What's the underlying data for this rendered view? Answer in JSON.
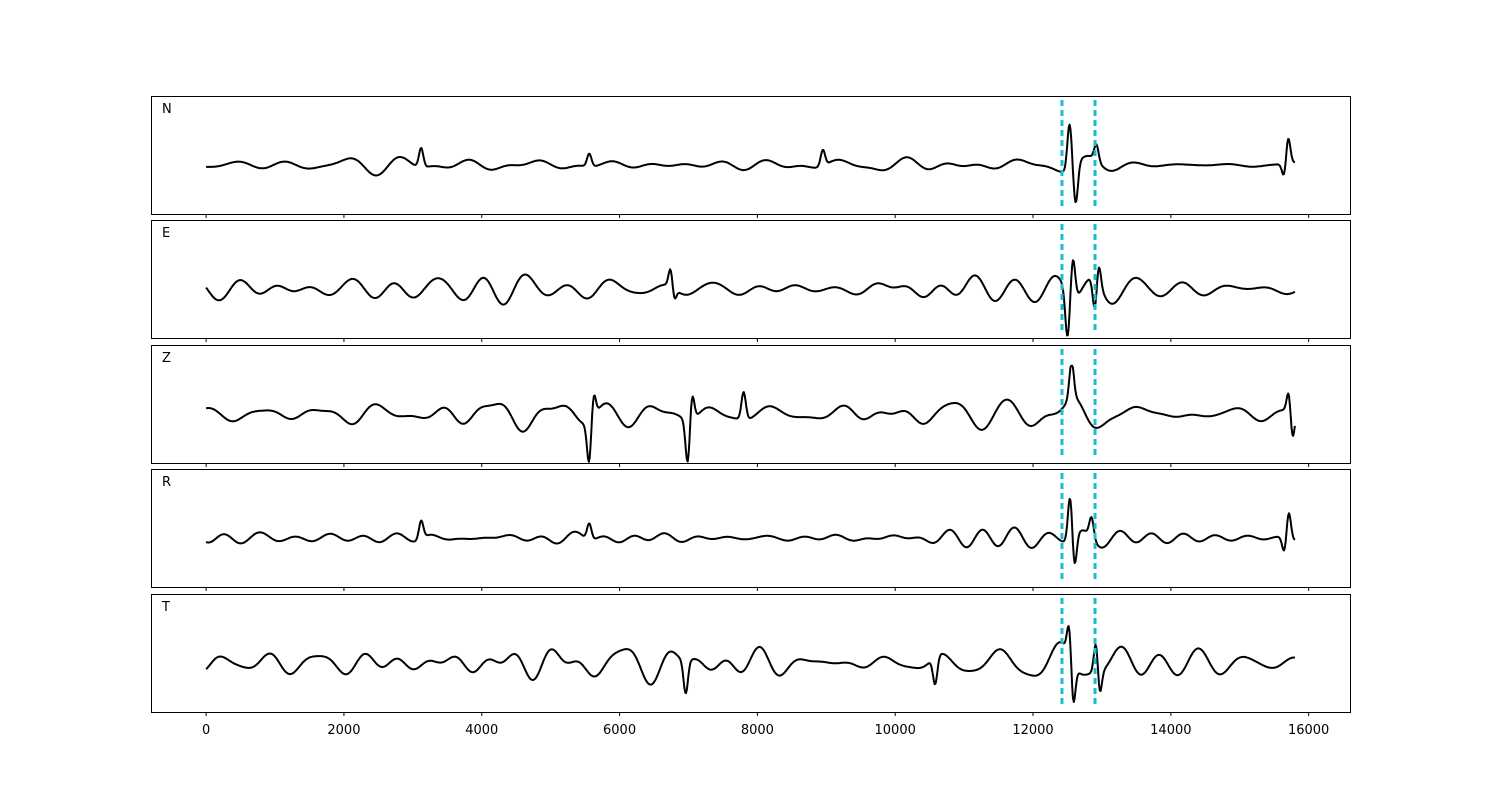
{
  "chart_data": {
    "type": "line",
    "xlim": [
      -800,
      16600
    ],
    "xticks": [
      0,
      2000,
      4000,
      6000,
      8000,
      10000,
      12000,
      14000,
      16000
    ],
    "xtick_labels": [
      "0",
      "2000",
      "4000",
      "6000",
      "8000",
      "10000",
      "12000",
      "14000",
      "16000"
    ],
    "x_range": [
      0,
      15800
    ],
    "grid": false,
    "pick_lines": [
      {
        "x": 12420,
        "color": "#17becf",
        "style": "dashed"
      },
      {
        "x": 12900,
        "color": "#17becf",
        "style": "dashed"
      }
    ],
    "panels": [
      {
        "label": "N",
        "background_amplitude": 0.22,
        "events": [
          {
            "x": 3120,
            "amp": 0.42
          },
          {
            "x": 5560,
            "amp": 0.28
          },
          {
            "x": 8950,
            "amp": 0.35
          },
          {
            "x": 12530,
            "amp": 1.0
          },
          {
            "x": 12620,
            "amp": -0.85
          },
          {
            "x": 12920,
            "amp": 0.35
          },
          {
            "x": 15700,
            "amp": 0.62
          },
          {
            "x": 15650,
            "amp": -0.35
          }
        ]
      },
      {
        "label": "E",
        "background_amplitude": 0.42,
        "events": [
          {
            "x": 6750,
            "amp": 0.6
          },
          {
            "x": 6780,
            "amp": -0.45
          },
          {
            "x": 12500,
            "amp": -1.0
          },
          {
            "x": 12580,
            "amp": 0.85
          },
          {
            "x": 12900,
            "amp": -0.75
          },
          {
            "x": 12950,
            "amp": 0.55
          }
        ]
      },
      {
        "label": "Z",
        "background_amplitude": 0.38,
        "events": [
          {
            "x": 5560,
            "amp": -0.95
          },
          {
            "x": 5620,
            "amp": 0.55
          },
          {
            "x": 6990,
            "amp": -1.0
          },
          {
            "x": 7050,
            "amp": 0.6
          },
          {
            "x": 7800,
            "amp": 0.6
          },
          {
            "x": 12560,
            "amp": 0.8
          },
          {
            "x": 15720,
            "amp": 0.6
          },
          {
            "x": 15760,
            "amp": -0.75
          }
        ]
      },
      {
        "label": "R",
        "background_amplitude": 0.22,
        "events": [
          {
            "x": 3120,
            "amp": 0.4
          },
          {
            "x": 5560,
            "amp": 0.35
          },
          {
            "x": 12540,
            "amp": 1.0
          },
          {
            "x": 12600,
            "amp": -0.75
          },
          {
            "x": 12850,
            "amp": 0.45
          },
          {
            "x": 15710,
            "amp": 0.62
          },
          {
            "x": 15650,
            "amp": -0.35
          }
        ]
      },
      {
        "label": "T",
        "background_amplitude": 0.5,
        "events": [
          {
            "x": 6960,
            "amp": -0.72
          },
          {
            "x": 10580,
            "amp": -0.6
          },
          {
            "x": 12580,
            "amp": -1.0
          },
          {
            "x": 12530,
            "amp": 0.8
          },
          {
            "x": 12920,
            "amp": 0.85
          },
          {
            "x": 12960,
            "amp": -0.7
          }
        ]
      }
    ]
  }
}
